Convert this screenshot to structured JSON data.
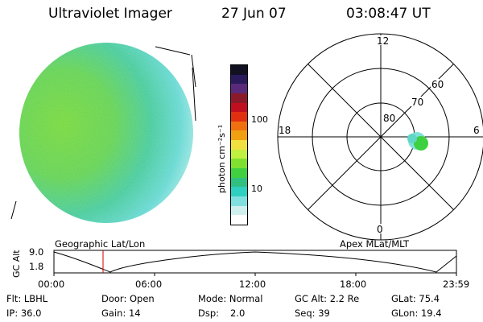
{
  "header": {
    "title": "Ultraviolet Imager",
    "date": "27 Jun 07",
    "time": "03:08:47 UT"
  },
  "colorbar": {
    "unit_label": "photon cm⁻²s⁻¹",
    "ticks": [
      "100",
      "10"
    ],
    "colors": [
      "#111122",
      "#2a1a5c",
      "#5a2a7a",
      "#8a1a2a",
      "#c01020",
      "#e03010",
      "#f07010",
      "#f0a010",
      "#f0e040",
      "#c0f040",
      "#80e030",
      "#40d040",
      "#30c080",
      "#30d0c0",
      "#80e0e0",
      "#d0f0f0",
      "#ffffff"
    ]
  },
  "polar": {
    "labels": {
      "top": "12",
      "bottom": "0",
      "left": "18",
      "right": "6",
      "lat80": "80",
      "lat70": "70",
      "lat60": "60"
    }
  },
  "timeline": {
    "left_title": "Geographic Lat/Lon",
    "right_title": "Apex MLat/MLT",
    "y_axis_label": "GC Alt",
    "y_ticks": [
      "9.0",
      "1.8"
    ],
    "x_ticks": [
      "00:00",
      "06:00",
      "12:00",
      "18:00",
      "23:59"
    ]
  },
  "info": {
    "flt": "Flt: LBHL",
    "ip": "IP: 36.0",
    "door": "Door: Open",
    "gain": "Gain: 14",
    "mode": "Mode: Normal",
    "dsp_label": "Dsp:",
    "dsp_value": "2.0",
    "gc_alt": "GC Alt: 2.2 Re",
    "seq": "Seq: 39",
    "glat": "GLat:  75.4",
    "glon": "GLon:  19.4"
  }
}
